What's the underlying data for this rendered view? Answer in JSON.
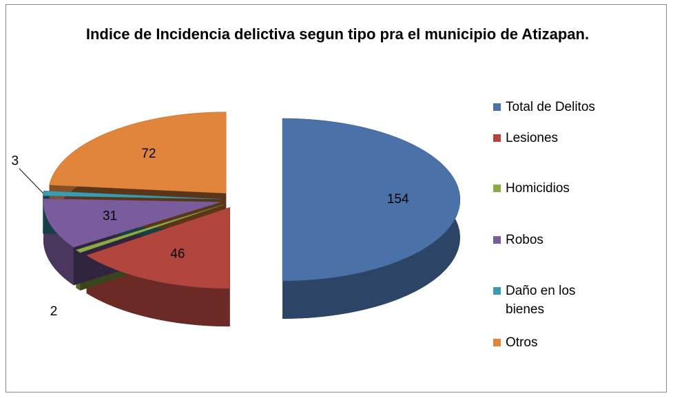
{
  "chart_data": {
    "type": "pie",
    "title": "Indice de Incidencia delictiva segun tipo pra el municipio de Atizapan.",
    "categories": [
      "Total de Delitos",
      "Lesiones",
      "Homicidios",
      "Robos",
      "Daño en los bienes",
      "Otros"
    ],
    "values": [
      154,
      46,
      2,
      31,
      3,
      72
    ],
    "colors": [
      "#4a72a8",
      "#b2463f",
      "#8cab47",
      "#7a5b9b",
      "#3b9bb0",
      "#e0853b"
    ],
    "legend": "right"
  }
}
